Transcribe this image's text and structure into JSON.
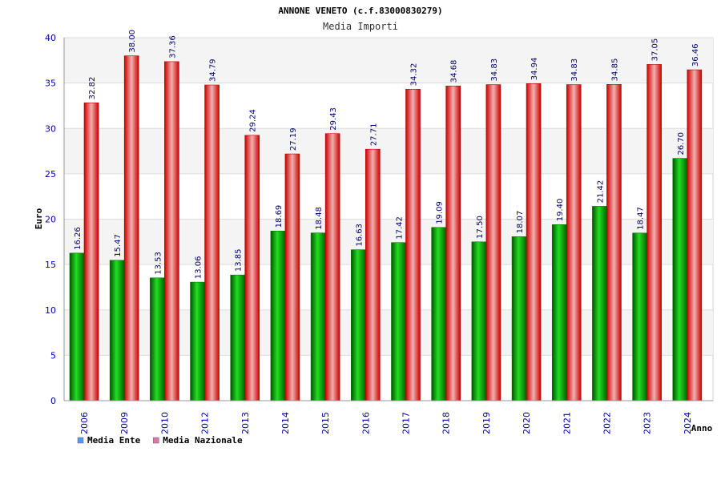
{
  "chart_data": {
    "type": "bar",
    "title": "ANNONE VENETO (c.f.83000830279)",
    "subtitle": "Media Importi",
    "xlabel": "Anno",
    "ylabel": "Euro",
    "ylim": [
      0,
      40
    ],
    "yticks": [
      0,
      5,
      10,
      15,
      20,
      25,
      30,
      35,
      40
    ],
    "grid": true,
    "legend_position": "bottom-left",
    "categories": [
      "2006",
      "2009",
      "2010",
      "2012",
      "2013",
      "2014",
      "2015",
      "2016",
      "2017",
      "2018",
      "2019",
      "2020",
      "2021",
      "2022",
      "2023",
      "2024"
    ],
    "series": [
      {
        "name": "Media Ente",
        "color": "#00aa00",
        "legend_color": "#5599ee",
        "values": [
          16.26,
          15.47,
          13.53,
          13.06,
          13.85,
          18.69,
          18.48,
          16.63,
          17.42,
          19.09,
          17.5,
          18.07,
          19.4,
          21.42,
          18.47,
          26.7
        ],
        "labels": [
          "16.26",
          "15.47",
          "13.53",
          "13.06",
          "13.85",
          "18.69",
          "18.48",
          "16.63",
          "17.42",
          "19.09",
          "17.50",
          "18.07",
          "19.40",
          "21.42",
          "18.47",
          "26.70"
        ]
      },
      {
        "name": "Media Nazionale",
        "color": "#ee0000",
        "legend_color": "#dd77aa",
        "values": [
          32.82,
          38.0,
          37.36,
          34.79,
          29.24,
          27.19,
          29.43,
          27.71,
          34.32,
          34.68,
          34.83,
          34.94,
          34.83,
          34.85,
          37.05,
          36.46
        ],
        "labels": [
          "32.82",
          "38.00",
          "37.36",
          "34.79",
          "29.24",
          "27.19",
          "29.43",
          "27.71",
          "34.32",
          "34.68",
          "34.83",
          "34.94",
          "34.83",
          "34.85",
          "37.05",
          "36.46"
        ]
      }
    ]
  }
}
